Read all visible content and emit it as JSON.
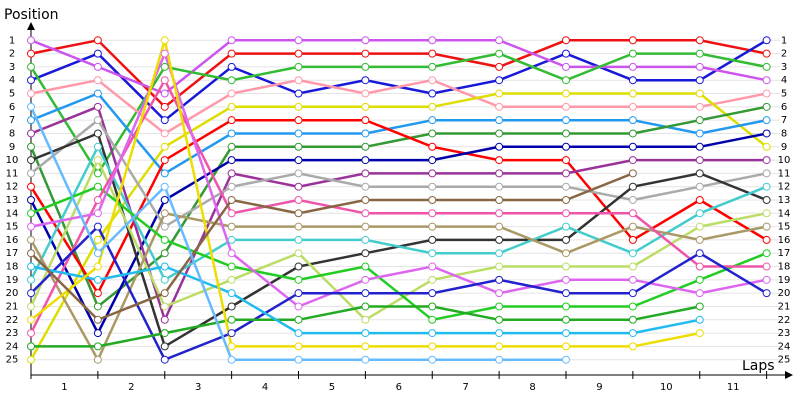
{
  "chart_data": {
    "type": "line",
    "title": "Position",
    "x_label": "Laps",
    "x": [
      0,
      1,
      2,
      3,
      4,
      5,
      6,
      7,
      8,
      9,
      10,
      11
    ],
    "xlim": [
      0,
      11.2
    ],
    "xticks": [
      {
        "value": 0.5,
        "label": "1"
      },
      {
        "value": 1.5,
        "label": "2"
      },
      {
        "value": 2.5,
        "label": "3"
      },
      {
        "value": 3.5,
        "label": "4"
      },
      {
        "value": 4.5,
        "label": "5"
      },
      {
        "value": 5.5,
        "label": "6"
      },
      {
        "value": 6.5,
        "label": "7"
      },
      {
        "value": 7.5,
        "label": "8"
      },
      {
        "value": 8.5,
        "label": "9"
      },
      {
        "value": 9.5,
        "label": "10"
      },
      {
        "value": 10.5,
        "label": "11"
      }
    ],
    "ylim": [
      26,
      0
    ],
    "yticks": [
      1,
      2,
      3,
      4,
      5,
      6,
      7,
      8,
      9,
      10,
      11,
      12,
      13,
      14,
      15,
      16,
      17,
      18,
      19,
      20,
      21,
      22,
      23,
      24,
      25
    ],
    "grid": true,
    "series": [
      {
        "color": "#ee1111",
        "values": [
          2,
          1,
          6,
          2,
          2,
          2,
          2,
          3,
          1,
          1,
          1,
          2
        ]
      },
      {
        "color": "#1818d8",
        "values": [
          4,
          2,
          7,
          3,
          5,
          4,
          5,
          4,
          2,
          4,
          4,
          1
        ]
      },
      {
        "color": "#cc55ee",
        "values": [
          1,
          3,
          5,
          1,
          1,
          1,
          1,
          1,
          3,
          3,
          3,
          4
        ]
      },
      {
        "color": "#33bb33",
        "values": [
          3,
          11,
          3,
          4,
          3,
          3,
          3,
          2,
          4,
          2,
          2,
          3
        ]
      },
      {
        "color": "#ff99aa",
        "values": [
          5,
          4,
          8,
          5,
          4,
          5,
          4,
          6,
          6,
          6,
          6,
          5
        ]
      },
      {
        "color": "#dddd00",
        "values": [
          25,
          16,
          9,
          6,
          6,
          6,
          6,
          5,
          5,
          5,
          5,
          9
        ]
      },
      {
        "color": "#2299ee",
        "values": [
          7,
          5,
          11,
          8,
          8,
          8,
          7,
          7,
          7,
          7,
          8,
          7
        ]
      },
      {
        "color": "#339933",
        "values": [
          9,
          21,
          17,
          9,
          9,
          9,
          8,
          8,
          8,
          8,
          7,
          6
        ]
      },
      {
        "color": "#ff0000",
        "values": [
          12,
          20,
          10,
          7,
          7,
          7,
          9,
          10,
          10,
          16,
          13,
          16
        ]
      },
      {
        "color": "#0000aa",
        "values": [
          13,
          23,
          13,
          10,
          10,
          10,
          10,
          9,
          9,
          9,
          9,
          8
        ]
      },
      {
        "color": "#993399",
        "values": [
          8,
          6,
          22,
          11,
          12,
          11,
          11,
          11,
          11,
          10,
          10,
          10
        ]
      },
      {
        "color": "#aaaaaa",
        "values": [
          11,
          7,
          15,
          12,
          11,
          12,
          12,
          12,
          12,
          13,
          12,
          11
        ]
      },
      {
        "color": "#333333",
        "values": [
          10,
          8,
          24,
          21,
          18,
          17,
          16,
          16,
          16,
          12,
          11,
          13
        ]
      },
      {
        "color": "#44cccc",
        "values": [
          19,
          9,
          19,
          16,
          16,
          16,
          17,
          17,
          15,
          17,
          14,
          12
        ]
      },
      {
        "color": "#bbdd66",
        "values": [
          21,
          10,
          21,
          19,
          17,
          22,
          19,
          18,
          18,
          18,
          15,
          14
        ]
      },
      {
        "color": "#aa9966",
        "values": [
          16,
          25,
          14,
          15,
          15,
          15,
          15,
          15,
          17,
          15,
          16,
          15
        ]
      },
      {
        "color": "#22cc22",
        "values": [
          14,
          12,
          16,
          18,
          19,
          18,
          22,
          21,
          21,
          21,
          19,
          17
        ]
      },
      {
        "color": "#ee55aa",
        "values": [
          23,
          13,
          4,
          14,
          13,
          14,
          14,
          14,
          14,
          14,
          18,
          18
        ]
      },
      {
        "color": "#dd66ee",
        "values": [
          15,
          14,
          2,
          17,
          21,
          19,
          18,
          20,
          19,
          19,
          20,
          19
        ]
      },
      {
        "color": "#2222cc",
        "values": [
          20,
          15,
          25,
          23,
          20,
          20,
          20,
          19,
          20,
          20,
          17,
          20
        ]
      },
      {
        "color": "#22aa22",
        "values": [
          24,
          24,
          23,
          22,
          22,
          21,
          21,
          22,
          22,
          22,
          21,
          null
        ]
      },
      {
        "color": "#22bbee",
        "values": [
          18,
          19,
          18,
          20,
          23,
          23,
          23,
          23,
          23,
          23,
          22,
          null
        ]
      },
      {
        "color": "#eedd00",
        "values": [
          22,
          18,
          1,
          24,
          24,
          24,
          24,
          24,
          24,
          24,
          23,
          null
        ]
      },
      {
        "color": "#886644",
        "values": [
          17,
          22,
          20,
          13,
          14,
          13,
          13,
          13,
          13,
          11,
          null,
          null
        ]
      },
      {
        "color": "#66bbff",
        "values": [
          6,
          17,
          12,
          25,
          25,
          25,
          25,
          25,
          25,
          null,
          null,
          null
        ]
      }
    ]
  }
}
